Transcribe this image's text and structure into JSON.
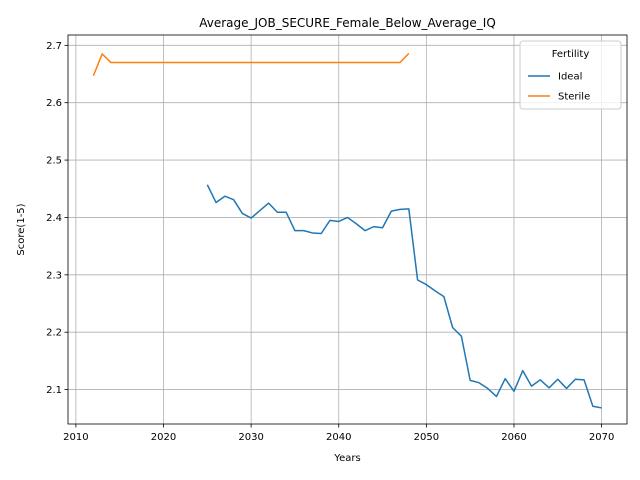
{
  "chart_data": {
    "type": "line",
    "title": "Average_JOB_SECURE_Female_Below_Average_IQ",
    "xlabel": "Years",
    "ylabel": "Score(1-5)",
    "xlim": [
      2009.1,
      2072.9
    ],
    "ylim": [
      2.04,
      2.718
    ],
    "xticks": [
      2010,
      2020,
      2030,
      2040,
      2050,
      2060,
      2070
    ],
    "yticks": [
      2.1,
      2.2,
      2.3,
      2.4,
      2.5,
      2.6,
      2.7
    ],
    "grid": true,
    "legend": {
      "title": "Fertility",
      "placement": "top-right"
    },
    "series": [
      {
        "name": "Ideal",
        "color": "#1f77b4",
        "x": [
          2025,
          2026,
          2027,
          2028,
          2029,
          2030,
          2031,
          2032,
          2033,
          2034,
          2035,
          2036,
          2037,
          2038,
          2039,
          2040,
          2041,
          2042,
          2043,
          2044,
          2045,
          2046,
          2047,
          2048,
          2049,
          2050,
          2051,
          2052,
          2053,
          2054,
          2055,
          2056,
          2057,
          2058,
          2059,
          2060,
          2061,
          2062,
          2063,
          2064,
          2065,
          2066,
          2067,
          2068,
          2069,
          2070
        ],
        "y": [
          2.457,
          2.426,
          2.437,
          2.431,
          2.407,
          2.399,
          2.412,
          2.425,
          2.409,
          2.409,
          2.377,
          2.377,
          2.373,
          2.372,
          2.395,
          2.393,
          2.4,
          2.389,
          2.377,
          2.384,
          2.382,
          2.411,
          2.414,
          2.415,
          2.291,
          2.283,
          2.272,
          2.262,
          2.208,
          2.193,
          2.116,
          2.112,
          2.102,
          2.088,
          2.119,
          2.097,
          2.133,
          2.106,
          2.117,
          2.103,
          2.118,
          2.102,
          2.118,
          2.117,
          2.071,
          2.068
        ]
      },
      {
        "name": "Sterile",
        "color": "#ff7f0e",
        "x": [
          2012,
          2013,
          2014,
          2015,
          2016,
          2017,
          2018,
          2019,
          2020,
          2021,
          2022,
          2023,
          2024,
          2025,
          2026,
          2027,
          2028,
          2029,
          2030,
          2031,
          2032,
          2033,
          2034,
          2035,
          2036,
          2037,
          2038,
          2039,
          2040,
          2041,
          2042,
          2043,
          2044,
          2045,
          2046,
          2047,
          2048
        ],
        "y": [
          2.647,
          2.685,
          2.67,
          2.67,
          2.67,
          2.67,
          2.67,
          2.67,
          2.67,
          2.67,
          2.67,
          2.67,
          2.67,
          2.67,
          2.67,
          2.67,
          2.67,
          2.67,
          2.67,
          2.67,
          2.67,
          2.67,
          2.67,
          2.67,
          2.67,
          2.67,
          2.67,
          2.67,
          2.67,
          2.67,
          2.67,
          2.67,
          2.67,
          2.67,
          2.67,
          2.67,
          2.686
        ]
      }
    ]
  }
}
